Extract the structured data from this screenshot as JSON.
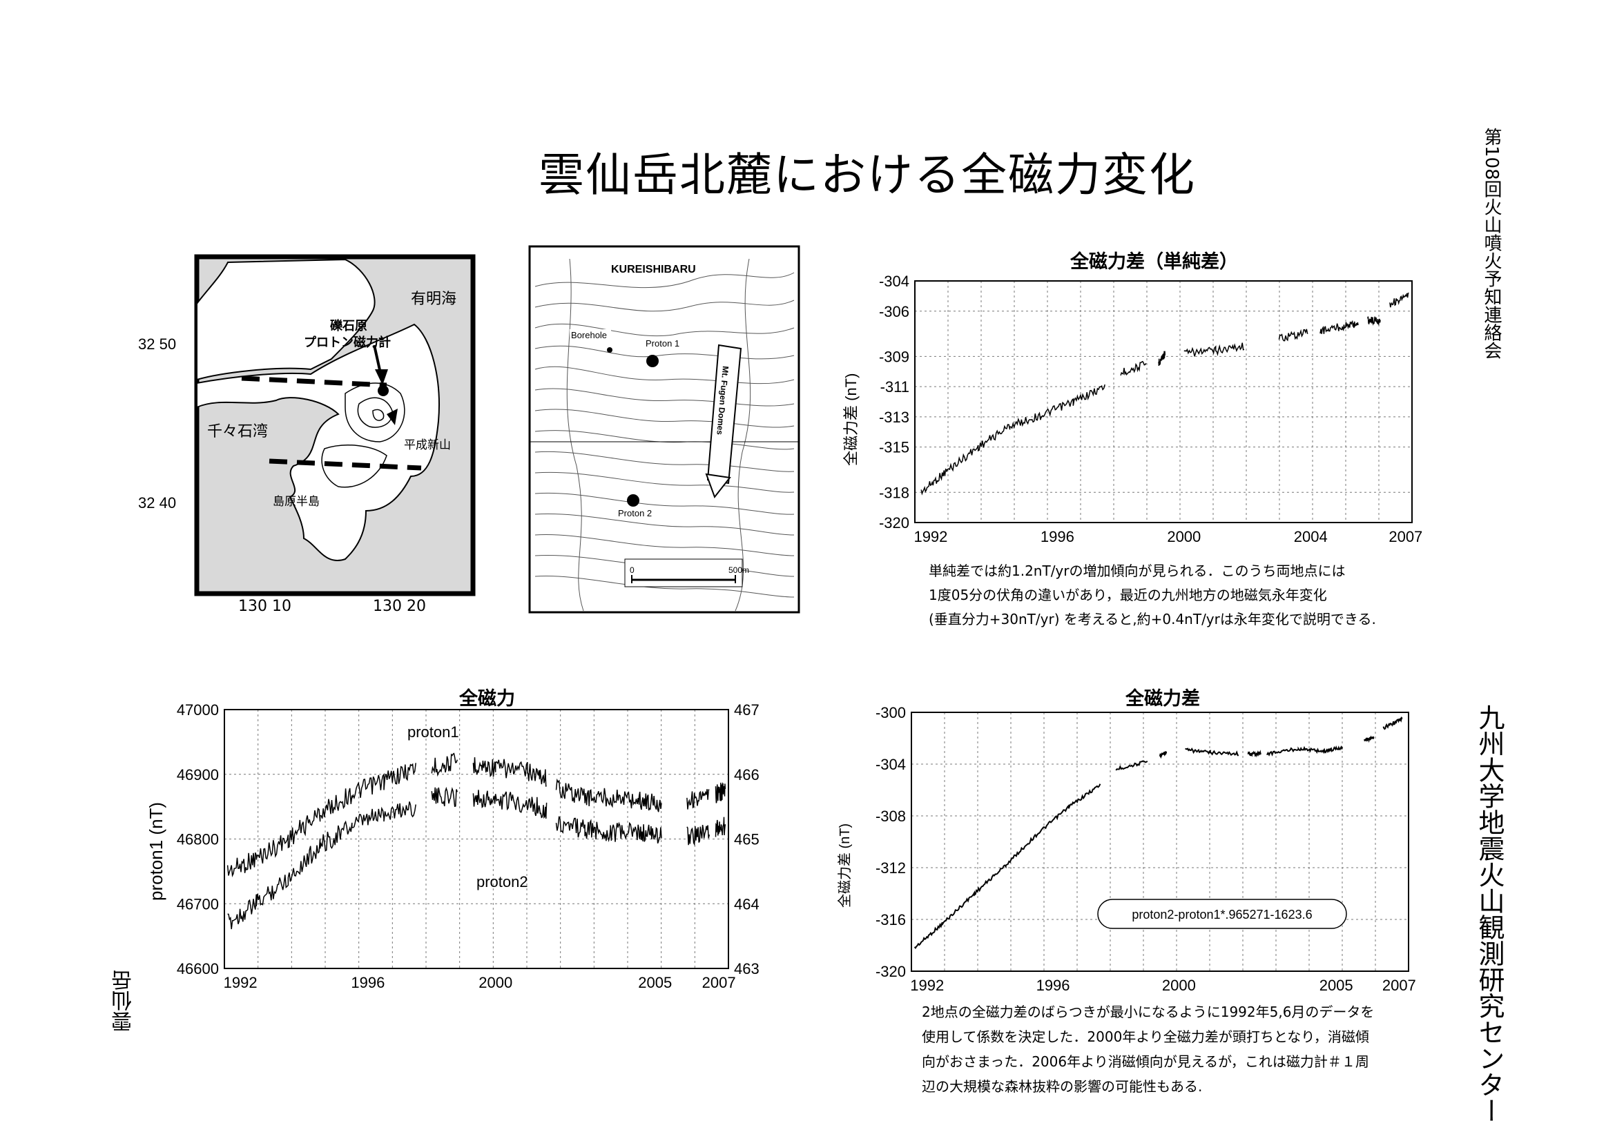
{
  "title": "雲仙岳北麓における全磁力変化",
  "side_label_top": "第108回火山噴火予知連絡会",
  "side_label_bottom": "九州大学地震火山観測研究センター",
  "side_label_unzen": "雲仙岳",
  "map1": {
    "lat_labels": [
      "32 50",
      "32 40"
    ],
    "lon_labels": [
      "130 10",
      "130 20"
    ],
    "places": [
      "有明海",
      "礫石原",
      "プロトン磁力計",
      "千々石湾",
      "平成新山",
      "島原半島"
    ]
  },
  "map2": {
    "title": "KUREISHIBARU",
    "labels": [
      "Borehole",
      "Proton 1",
      "Proton 2",
      "Mt. Fugen Domes"
    ],
    "scale": [
      "0",
      "500m"
    ]
  },
  "chart_top_right": {
    "title": "全磁力差（単純差）",
    "ylabel": "全磁力差 (nT)",
    "note_lines": [
      "単純差では約1.2nT/yrの増加傾向が見られる．このうち両地点には",
      "1度05分の伏角の違いがあり，最近の九州地方の地磁気永年変化",
      "(垂直分力+30nT/yr) を考えると,約+0.4nT/yrは永年変化で説明できる."
    ]
  },
  "chart_bottom_left": {
    "title": "全磁力",
    "ylabel": "proton1 (nT)",
    "series_labels": [
      "proton1",
      "proton2"
    ]
  },
  "chart_bottom_right": {
    "title": "全磁力差",
    "ylabel": "全磁力差 (nT)",
    "formula": "proton2-proton1*.965271-1623.6",
    "note_lines": [
      "2地点の全磁力差のばらつきが最小になるように1992年5,6月のデータを",
      "使用して係数を決定した．2000年より全磁力差が頭打ちとなり，消磁傾",
      "向がおさまった．2006年より消磁傾向が見えるが，これは磁力計＃１周",
      "辺の大規模な森林抜粋の影響の可能性もある."
    ]
  },
  "chart_data": [
    {
      "type": "line",
      "title": "全磁力差（単純差）",
      "ylabel": "全磁力差 (nT)",
      "xlim": [
        1991.5,
        2007.2
      ],
      "ylim": [
        -320,
        -304
      ],
      "xticks": [
        1992,
        1996,
        2000,
        2004,
        2007
      ],
      "yticks": [
        -304,
        -306,
        -309,
        -311,
        -313,
        -315,
        -318,
        -320
      ],
      "grid": true,
      "series": [
        {
          "segments": [
            {
              "x": [
                1991.7,
                1992.5,
                1993.5,
                1994.5,
                1995.5,
                1996.5,
                1997.5
              ],
              "y": [
                -318.0,
                -316.6,
                -315.0,
                -313.6,
                -312.9,
                -312.0,
                -311.0
              ]
            },
            {
              "x": [
                1998.0,
                1998.8
              ],
              "y": [
                -310.1,
                -309.5
              ]
            },
            {
              "x": [
                1999.2,
                1999.4
              ],
              "y": [
                -309.4,
                -308.8
              ]
            },
            {
              "x": [
                2000.0,
                2001.0,
                2001.9
              ],
              "y": [
                -308.8,
                -308.6,
                -308.3
              ]
            },
            {
              "x": [
                2003.0,
                2003.9
              ],
              "y": [
                -307.8,
                -307.4
              ]
            },
            {
              "x": [
                2004.3,
                2005.0,
                2005.5
              ],
              "y": [
                -307.3,
                -307.0,
                -306.8
              ]
            },
            {
              "x": [
                2005.8,
                2006.2
              ],
              "y": [
                -306.6,
                -306.6
              ]
            },
            {
              "x": [
                2006.5,
                2007.1
              ],
              "y": [
                -305.5,
                -305.0
              ]
            }
          ]
        }
      ]
    },
    {
      "type": "line",
      "title": "全磁力",
      "ylabel": "proton1 (nT)",
      "xlim": [
        1991.5,
        2007.3
      ],
      "ylim": [
        46600,
        47000
      ],
      "y2lim": [
        463,
        467
      ],
      "xticks": [
        1992,
        1996,
        2000,
        2005,
        2007
      ],
      "yticks": [
        46600,
        46700,
        46800,
        46900,
        47000
      ],
      "y2ticks": [
        463,
        464,
        465,
        466,
        467
      ],
      "grid": true,
      "series": [
        {
          "name": "proton1",
          "segments": [
            {
              "x": [
                1991.6,
                1992.5,
                1993.5,
                1994.5,
                1995.5,
                1996.5,
                1997.5
              ],
              "y": [
                46750,
                46770,
                46800,
                46840,
                46870,
                46890,
                46910
              ]
            },
            {
              "x": [
                1998.0,
                1998.8
              ],
              "y": [
                46910,
                46920
              ]
            },
            {
              "x": [
                1999.3,
                2000.0,
                2001.0,
                2001.6
              ],
              "y": [
                46915,
                46910,
                46905,
                46895
              ]
            },
            {
              "x": [
                2001.9,
                2002.8,
                2003.6,
                2004.5,
                2005.2
              ],
              "y": [
                46880,
                46865,
                46865,
                46860,
                46855
              ]
            },
            {
              "x": [
                2006.0,
                2006.7
              ],
              "y": [
                46860,
                46865
              ]
            },
            {
              "x": [
                2006.9,
                2007.2
              ],
              "y": [
                46870,
                46875
              ]
            }
          ]
        },
        {
          "name": "proton2",
          "segments": [
            {
              "x": [
                1991.6,
                1992.5,
                1993.5,
                1994.5,
                1995.5,
                1996.5,
                1997.5
              ],
              "y": [
                46670,
                46700,
                46740,
                46790,
                46820,
                46840,
                46850
              ]
            },
            {
              "x": [
                1998.0,
                1998.8
              ],
              "y": [
                46865,
                46865
              ]
            },
            {
              "x": [
                1999.3,
                2000.0,
                2001.0,
                2001.6
              ],
              "y": [
                46865,
                46860,
                46855,
                46845
              ]
            },
            {
              "x": [
                2001.9,
                2002.8,
                2003.6,
                2004.5,
                2005.2
              ],
              "y": [
                46825,
                46815,
                46810,
                46810,
                46805
              ]
            },
            {
              "x": [
                2006.0,
                2006.7
              ],
              "y": [
                46805,
                46810
              ]
            },
            {
              "x": [
                2006.9,
                2007.2
              ],
              "y": [
                46815,
                46820
              ]
            }
          ]
        }
      ]
    },
    {
      "type": "line",
      "title": "全磁力差",
      "ylabel": "全磁力差 (nT)",
      "xlim": [
        1991.5,
        2007.3
      ],
      "ylim": [
        -320,
        -300
      ],
      "xticks": [
        1992,
        1996,
        2000,
        2005,
        2007
      ],
      "yticks": [
        -300,
        -304,
        -308,
        -312,
        -316,
        -320
      ],
      "grid": true,
      "series": [
        {
          "segments": [
            {
              "x": [
                1991.6,
                1992.5,
                1993.5,
                1994.5,
                1995.5,
                1996.5,
                1997.5
              ],
              "y": [
                -318.2,
                -316.3,
                -314.0,
                -311.8,
                -309.4,
                -307.3,
                -305.6
              ]
            },
            {
              "x": [
                1998.0,
                1999.0
              ],
              "y": [
                -304.4,
                -303.8
              ]
            },
            {
              "x": [
                1999.4,
                1999.6
              ],
              "y": [
                -303.3,
                -303.1
              ]
            },
            {
              "x": [
                2000.2,
                2001.0,
                2001.9
              ],
              "y": [
                -302.9,
                -303.1,
                -303.2
              ]
            },
            {
              "x": [
                2002.2,
                2002.6
              ],
              "y": [
                -303.2,
                -303.2
              ]
            },
            {
              "x": [
                2002.8,
                2003.8,
                2004.6,
                2005.2
              ],
              "y": [
                -303.2,
                -302.8,
                -303.0,
                -302.7
              ]
            },
            {
              "x": [
                2005.9,
                2006.2
              ],
              "y": [
                -302.1,
                -302.0
              ]
            },
            {
              "x": [
                2006.5,
                2007.1
              ],
              "y": [
                -301.2,
                -300.5
              ]
            }
          ]
        }
      ]
    }
  ]
}
